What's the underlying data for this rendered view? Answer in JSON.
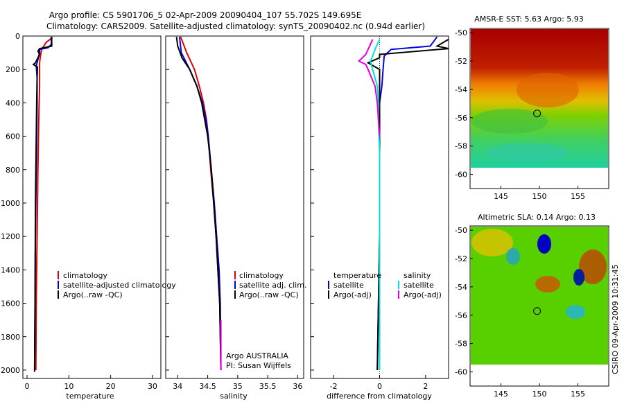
{
  "title": {
    "line1": "Argo profile: CS 5901706_5 02-Apr-2009 20090404_107 55.702S 149.695E",
    "line2": "Climatology: CARS2009. Satellite-adjusted climatology: synTS_20090402.nc (0.94d earlier)"
  },
  "stamp": "CSIRO 09-Apr-2009 10:31:45",
  "colors": {
    "red": "#e00000",
    "blue": "#0000e0",
    "black": "#000000",
    "cyan": "#00e0e0",
    "magenta": "#e000e0"
  },
  "chart_data": [
    {
      "type": "line",
      "xlabel": "temperature",
      "ylabel": "",
      "xlim": [
        -1,
        32
      ],
      "ylim": [
        2050,
        0
      ],
      "x_ticks": [
        0,
        10,
        20,
        30
      ],
      "y_ticks": [
        0,
        200,
        400,
        600,
        800,
        1000,
        1200,
        1400,
        1600,
        1800,
        2000
      ],
      "legend": [
        "climatology",
        "satellite-adjusted climatology",
        "Argo(..raw -QC)"
      ],
      "series": [
        {
          "color": "red",
          "points": [
            [
              6,
              5
            ],
            [
              5.5,
              20
            ],
            [
              4.5,
              40
            ],
            [
              4,
              60
            ],
            [
              3.5,
              80
            ],
            [
              3.2,
              120
            ],
            [
              3,
              160
            ],
            [
              3,
              200
            ],
            [
              3,
              300
            ],
            [
              2.9,
              400
            ],
            [
              2.8,
              500
            ],
            [
              2.6,
              800
            ],
            [
              2.4,
              1200
            ],
            [
              2.2,
              1600
            ],
            [
              2.1,
              2000
            ]
          ]
        },
        {
          "color": "blue",
          "points": [
            [
              5.8,
              5
            ],
            [
              5.8,
              50
            ],
            [
              5,
              70
            ],
            [
              3,
              80
            ],
            [
              3,
              100
            ],
            [
              2.5,
              150
            ],
            [
              2.2,
              180
            ],
            [
              2.4,
              250
            ],
            [
              2.4,
              400
            ],
            [
              2.3,
              600
            ],
            [
              2.2,
              800
            ],
            [
              2,
              1200
            ],
            [
              1.9,
              1600
            ],
            [
              1.8,
              2000
            ]
          ]
        },
        {
          "color": "black",
          "points": [
            [
              5.9,
              5
            ],
            [
              5.9,
              60
            ],
            [
              3,
              75
            ],
            [
              2.6,
              90
            ],
            [
              3,
              110
            ],
            [
              2,
              160
            ],
            [
              1.5,
              170
            ],
            [
              2.5,
              185
            ],
            [
              2.4,
              250
            ],
            [
              2.3,
              400
            ],
            [
              2.2,
              600
            ],
            [
              2,
              1000
            ],
            [
              1.9,
              1600
            ],
            [
              1.8,
              2010
            ]
          ]
        }
      ]
    },
    {
      "type": "line",
      "xlabel": "salinity",
      "ylabel": "",
      "xlim": [
        33.8,
        36.1
      ],
      "ylim": [
        2050,
        0
      ],
      "x_ticks": [
        34,
        34.5,
        35,
        35.5,
        36
      ],
      "legend": [
        "climatology",
        "satellite adj. clim.",
        "Argo(..raw -QC)"
      ],
      "annotation": [
        "Argo AUSTRALIA",
        "PI: Susan Wijffels"
      ],
      "series": [
        {
          "color": "red",
          "points": [
            [
              34.05,
              5
            ],
            [
              34.15,
              100
            ],
            [
              34.28,
              200
            ],
            [
              34.36,
              300
            ],
            [
              34.43,
              400
            ],
            [
              34.48,
              500
            ],
            [
              34.51,
              600
            ],
            [
              34.55,
              800
            ],
            [
              34.6,
              1000
            ],
            [
              34.64,
              1200
            ],
            [
              34.67,
              1400
            ],
            [
              34.7,
              1600
            ],
            [
              34.72,
              2000
            ]
          ]
        },
        {
          "color": "blue",
          "points": [
            [
              34.03,
              5
            ],
            [
              34.06,
              100
            ],
            [
              34.2,
              200
            ],
            [
              34.32,
              300
            ],
            [
              34.41,
              400
            ],
            [
              34.47,
              500
            ],
            [
              34.51,
              600
            ],
            [
              34.56,
              800
            ],
            [
              34.61,
              1000
            ],
            [
              34.65,
              1200
            ],
            [
              34.69,
              1400
            ],
            [
              34.71,
              1600
            ],
            [
              34.72,
              2000
            ]
          ]
        },
        {
          "color": "black",
          "points": [
            [
              33.98,
              5
            ],
            [
              34.0,
              60
            ],
            [
              34.07,
              130
            ],
            [
              34.2,
              200
            ],
            [
              34.32,
              300
            ],
            [
              34.4,
              400
            ],
            [
              34.45,
              500
            ],
            [
              34.5,
              600
            ],
            [
              34.56,
              800
            ],
            [
              34.6,
              1000
            ],
            [
              34.64,
              1200
            ],
            [
              34.67,
              1400
            ],
            [
              34.7,
              1600
            ],
            [
              34.72,
              2000
            ]
          ]
        },
        {
          "color": "magenta",
          "points": [
            [
              34.72,
              1700
            ],
            [
              34.72,
              2000
            ]
          ]
        }
      ]
    },
    {
      "type": "line",
      "xlabel": "difference from climatology",
      "ylabel": "",
      "xlim": [
        -3,
        3
      ],
      "ylim": [
        2050,
        0
      ],
      "x_ticks": [
        -2,
        0,
        2
      ],
      "legend": {
        "temperature": [
          "satellite",
          "Argo(-adj)"
        ],
        "salinity": [
          "satellite",
          "Argo(-adj)"
        ]
      },
      "series": [
        {
          "color": "blue",
          "points": [
            [
              2.5,
              5
            ],
            [
              2.2,
              60
            ],
            [
              0.5,
              80
            ],
            [
              0.2,
              120
            ],
            [
              0.15,
              200
            ],
            [
              0.1,
              300
            ],
            [
              0,
              400
            ],
            [
              0,
              500
            ],
            [
              0,
              600
            ],
            [
              0,
              800
            ],
            [
              0,
              1200
            ],
            [
              -0.1,
              2000
            ]
          ]
        },
        {
          "color": "black",
          "points": [
            [
              3,
              20
            ],
            [
              2.5,
              60
            ],
            [
              3,
              75
            ],
            [
              0,
              110
            ],
            [
              0,
              130
            ],
            [
              -0.5,
              160
            ],
            [
              0,
              200
            ],
            [
              0,
              250
            ],
            [
              0,
              300
            ],
            [
              0,
              400
            ],
            [
              0,
              500
            ],
            [
              0,
              600
            ],
            [
              0,
              800
            ],
            [
              0,
              1200
            ],
            [
              -0.1,
              2000
            ]
          ]
        },
        {
          "color": "cyan",
          "points": [
            [
              0,
              20
            ],
            [
              -0.2,
              80
            ],
            [
              -0.3,
              120
            ],
            [
              -0.4,
              150
            ],
            [
              -0.3,
              200
            ],
            [
              -0.1,
              300
            ],
            [
              -0.05,
              400
            ],
            [
              -0.05,
              500
            ],
            [
              0,
              700
            ],
            [
              0,
              2000
            ]
          ]
        },
        {
          "color": "magenta",
          "points": [
            [
              -0.3,
              20
            ],
            [
              -0.6,
              110
            ],
            [
              -0.9,
              150
            ],
            [
              -0.6,
              170
            ],
            [
              -0.5,
              200
            ],
            [
              -0.2,
              300
            ],
            [
              -0.1,
              400
            ],
            [
              -0.05,
              500
            ],
            [
              0,
              600
            ]
          ]
        }
      ]
    },
    {
      "type": "heatmap",
      "title": "AMSR-E SST: 5.63 Argo: 5.93",
      "xlim": [
        141,
        159
      ],
      "ylim": [
        -61,
        -49.7
      ],
      "x_ticks": [
        145,
        150,
        155
      ],
      "y_ticks": [
        -50,
        -52,
        -54,
        -56,
        -58,
        -60
      ],
      "marker": [
        149.695,
        -55.702
      ]
    },
    {
      "type": "heatmap",
      "title": "Altimetric SLA: 0.14 Argo: 0.13",
      "xlim": [
        141,
        159
      ],
      "ylim": [
        -61,
        -49.7
      ],
      "x_ticks": [
        145,
        150,
        155
      ],
      "y_ticks": [
        -50,
        -52,
        -54,
        -56,
        -58,
        -60
      ],
      "marker": [
        149.695,
        -55.702
      ]
    }
  ]
}
